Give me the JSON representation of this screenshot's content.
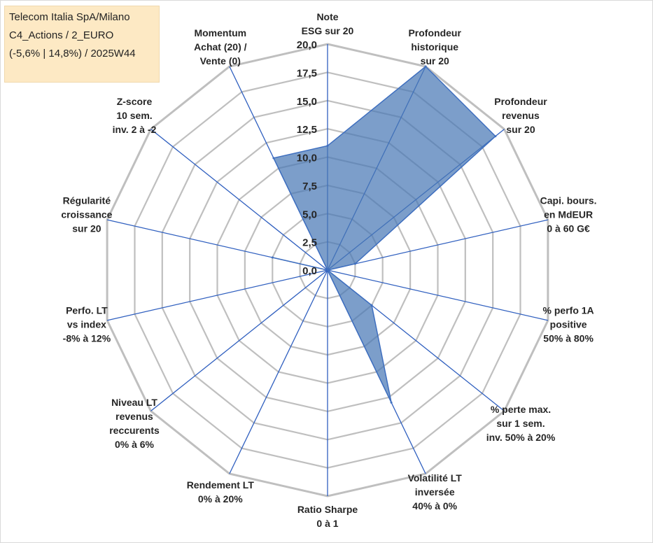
{
  "header": {
    "title_lines": [
      "Telecom Italia SpA/Milano",
      "C4_Actions / 2_EURO",
      "(-5,6% | 14,8%) / 2025W44"
    ]
  },
  "colors": {
    "fill": "#4a78b5",
    "stroke": "#3f6fbf",
    "grid": "#bfbfbf",
    "spoke": "#2f5fbf"
  },
  "chart_data": {
    "type": "radar",
    "title": "",
    "range": [
      0,
      20
    ],
    "ticks": [
      "0,0",
      "2,5",
      "5,0",
      "7,5",
      "10,0",
      "12,5",
      "15,0",
      "17,5",
      "20,0"
    ],
    "grid": true,
    "legend": "none",
    "axes": [
      [
        "Note",
        "ESG sur 20"
      ],
      [
        "Profondeur",
        "historique",
        "sur 20"
      ],
      [
        "Profondeur",
        "revenus",
        "sur 20"
      ],
      [
        "Capi. bours.",
        "en MdEUR",
        "0 à 60 G€"
      ],
      [
        "% perfo 1A",
        "positive",
        "50% à 80%"
      ],
      [
        "% perte max.",
        "sur 1 sem.",
        "inv. 50% à 20%"
      ],
      [
        "Volatilité LT",
        "inversée",
        "40% à 0%"
      ],
      [
        "Ratio Sharpe",
        "0 à 1"
      ],
      [
        "Rendement LT",
        "0% à 20%"
      ],
      [
        "Niveau LT",
        "revenus",
        "reccurents",
        "0% à 6%"
      ],
      [
        "Perfo. LT",
        "vs index",
        "-8% à 12%"
      ],
      [
        "Régularité",
        "croissance",
        "sur 20"
      ],
      [
        "Z-score",
        "10 sem.",
        "inv. 2 à -2"
      ],
      [
        "Momentum",
        "Achat (20) /",
        "Vente (0)"
      ]
    ],
    "series": [
      {
        "values": [
          11.0,
          20.0,
          19.0,
          2.5,
          0.0,
          5.0,
          13.0,
          0.0,
          0.0,
          0.0,
          0.0,
          5.0,
          0.0,
          11.0
        ]
      }
    ]
  }
}
